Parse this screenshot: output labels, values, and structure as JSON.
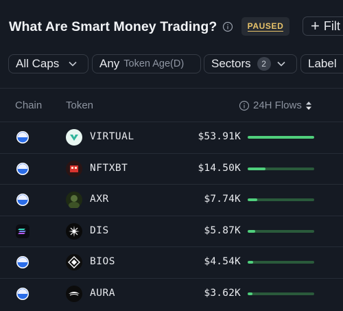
{
  "header": {
    "title": "What Are Smart Money Trading?",
    "status": "PAUSED",
    "filter_label": "Filt"
  },
  "filters": {
    "caps": "All Caps",
    "token_age_value": "Any",
    "token_age_label": "Token Age(D)",
    "sectors": "Sectors",
    "sectors_count": "2",
    "label": "Label"
  },
  "table": {
    "columns": {
      "chain": "Chain",
      "token": "Token",
      "flows": "24H Flows"
    },
    "rows": [
      {
        "chain": "base",
        "chain_icon": "base-chain-icon",
        "token": "VIRTUAL",
        "token_icon": "virtual-logo-icon",
        "flow": "$53.91K",
        "flow_fraction": 1.0
      },
      {
        "chain": "base",
        "chain_icon": "base-chain-icon",
        "token": "NFTXBT",
        "token_icon": "nftxbt-logo-icon",
        "flow": "$14.50K",
        "flow_fraction": 0.27
      },
      {
        "chain": "base",
        "chain_icon": "base-chain-icon",
        "token": "AXR",
        "token_icon": "axr-logo-icon",
        "flow": "$7.74K",
        "flow_fraction": 0.14
      },
      {
        "chain": "solana",
        "chain_icon": "solana-chain-icon",
        "token": "DIS",
        "token_icon": "dis-logo-icon",
        "flow": "$5.87K",
        "flow_fraction": 0.11
      },
      {
        "chain": "base",
        "chain_icon": "base-chain-icon",
        "token": "BIOS",
        "token_icon": "bios-logo-icon",
        "flow": "$4.54K",
        "flow_fraction": 0.08
      },
      {
        "chain": "base",
        "chain_icon": "base-chain-icon",
        "token": "AURA",
        "token_icon": "aura-logo-icon",
        "flow": "$3.62K",
        "flow_fraction": 0.07
      }
    ]
  },
  "colors": {
    "background": "#151a23",
    "accent_green": "#4fcf7c",
    "bar_track": "#2a5a3b",
    "paused_text": "#e9c46a",
    "base_chain": "#3b82f6"
  }
}
